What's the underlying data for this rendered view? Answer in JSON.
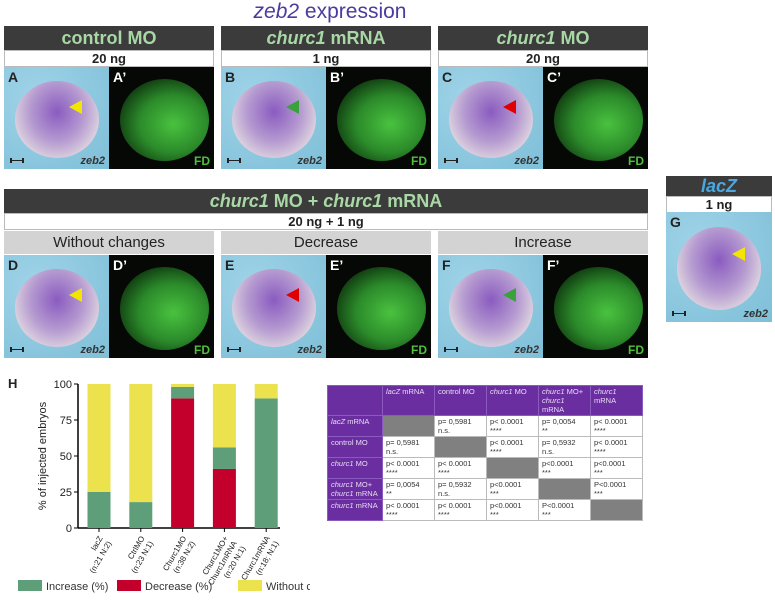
{
  "figure_title": {
    "gene": "zeb2",
    "rest": " expression"
  },
  "top_groups": [
    {
      "header_italic": "",
      "header_plain": "control MO",
      "dose": "20 ng",
      "panels": [
        {
          "letter": "A",
          "arrow": "#f2e600",
          "gene": "zeb2"
        },
        {
          "letter": "A’",
          "fd": "FD"
        }
      ]
    },
    {
      "header_italic": "churc1",
      "header_plain": " mRNA",
      "dose": "1 ng",
      "panels": [
        {
          "letter": "B",
          "arrow": "#3aa23a",
          "gene": "zeb2"
        },
        {
          "letter": "B’",
          "fd": "FD"
        }
      ]
    },
    {
      "header_italic": "churc1",
      "header_plain": " MO",
      "dose": "20 ng",
      "panels": [
        {
          "letter": "C",
          "arrow": "#e00000",
          "gene": "zeb2"
        },
        {
          "letter": "C’",
          "fd": "FD"
        }
      ]
    }
  ],
  "combo": {
    "header_italic1": "churc1",
    "header_plain1": " MO + ",
    "header_italic2": "churc1",
    "header_plain2": " mRNA",
    "dose": "20 ng + 1 ng",
    "groups": [
      {
        "label": "Without changes",
        "panels": [
          {
            "letter": "D",
            "arrow": "#f2e600",
            "gene": "zeb2"
          },
          {
            "letter": "D’",
            "fd": "FD"
          }
        ]
      },
      {
        "label": "Decrease",
        "panels": [
          {
            "letter": "E",
            "arrow": "#e00000",
            "gene": "zeb2"
          },
          {
            "letter": "E’",
            "fd": "FD"
          }
        ]
      },
      {
        "label": "Increase",
        "panels": [
          {
            "letter": "F",
            "arrow": "#3aa23a",
            "gene": "zeb2"
          },
          {
            "letter": "F’",
            "fd": "FD"
          }
        ]
      }
    ]
  },
  "lacz": {
    "header": "lacZ",
    "dose": "1 ng",
    "letter": "G",
    "gene": "zeb2",
    "arrow": "#f2e600",
    "header_color": "#4aa8e0"
  },
  "chart_label": "H",
  "chart_data": {
    "type": "bar",
    "stacked": true,
    "ylabel": "% of injected embryos",
    "ylim": [
      0,
      100
    ],
    "yticks": [
      "0",
      "25",
      "50",
      "75",
      "100"
    ],
    "categories": [
      [
        "lacZ",
        "(n:21 N:2)"
      ],
      [
        "CtrlMO",
        "(n:23 N:1)"
      ],
      [
        "Churc1MO",
        "(n:38 N:2)"
      ],
      [
        "Churc1MO+",
        "Churc1mRNA",
        "(n:20 N:1)"
      ],
      [
        "Churc1mRNA",
        "(n:18; N:1)"
      ]
    ],
    "series": [
      {
        "name": "Decrease (%)",
        "color": "#c3002b",
        "values": [
          0,
          0,
          90,
          41,
          0
        ]
      },
      {
        "name": "Increase (%)",
        "color": "#5e9e78",
        "values": [
          25,
          18,
          8,
          15,
          90
        ]
      },
      {
        "name": "Without changes (%)",
        "color": "#ebe24e",
        "values": [
          75,
          82,
          2,
          44,
          10
        ]
      }
    ],
    "legend_order": [
      1,
      0,
      2
    ],
    "legend": "bottom"
  },
  "table": {
    "columns": [
      [
        "lacZ",
        "mRNA"
      ],
      [
        "",
        "control MO"
      ],
      [
        "churc1",
        "MO"
      ],
      [
        "churc1",
        "MO+",
        "churc1",
        "mRNA"
      ],
      [
        "churc1",
        "mRNA"
      ]
    ],
    "rows": [
      {
        "label": [
          "lacZ",
          "mRNA"
        ],
        "cells": [
          null,
          [
            "p= 0,5981",
            "n.s."
          ],
          [
            "p< 0.0001",
            "****"
          ],
          [
            "p= 0,0054",
            "**"
          ],
          [
            "p< 0.0001",
            "****"
          ]
        ]
      },
      {
        "label": [
          "",
          "control MO"
        ],
        "cells": [
          [
            "p= 0,5981",
            "n.s."
          ],
          null,
          [
            "p< 0.0001",
            "****"
          ],
          [
            "p= 0,5932",
            "n.s."
          ],
          [
            "p< 0.0001",
            "****"
          ]
        ]
      },
      {
        "label": [
          "churc1",
          "MO"
        ],
        "cells": [
          [
            "p< 0.0001",
            "****"
          ],
          [
            "p< 0.0001",
            "****"
          ],
          null,
          [
            "p<0.0001",
            "***"
          ],
          [
            "p<0.0001",
            "***"
          ]
        ]
      },
      {
        "label": [
          "churc1",
          "MO+",
          "churc1",
          "mRNA"
        ],
        "cells": [
          [
            "p= 0,0054",
            "**"
          ],
          [
            "p= 0,5932",
            "n.s."
          ],
          [
            "p<0.0001",
            "***"
          ],
          null,
          [
            "P<0.0001",
            "***"
          ]
        ]
      },
      {
        "label": [
          "churc1",
          "mRNA"
        ],
        "cells": [
          [
            "p< 0.0001",
            "****"
          ],
          [
            "p< 0.0001",
            "****"
          ],
          [
            "p<0.0001",
            "***"
          ],
          [
            "P<0.0001",
            "***"
          ],
          null
        ]
      }
    ]
  }
}
